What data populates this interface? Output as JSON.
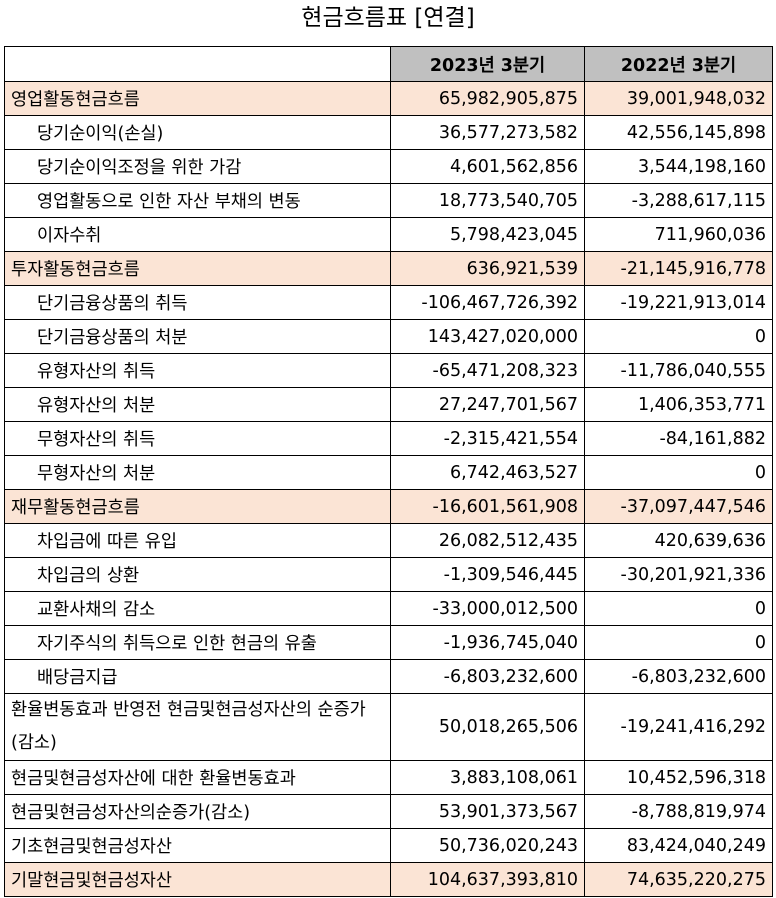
{
  "title": "현금흐름표 [연결]",
  "columns": [
    "",
    "2023년 3분기",
    "2022년 3분기"
  ],
  "rows": [
    {
      "label": "영업활동현금흐름",
      "v2023": "65,982,905,875",
      "v2022": "39,001,948,032",
      "section": true,
      "indent": false
    },
    {
      "label": "당기순이익(손실)",
      "v2023": "36,577,273,582",
      "v2022": "42,556,145,898",
      "section": false,
      "indent": true
    },
    {
      "label": "당기순이익조정을 위한 가감",
      "v2023": "4,601,562,856",
      "v2022": "3,544,198,160",
      "section": false,
      "indent": true
    },
    {
      "label": "영업활동으로 인한 자산 부채의 변동",
      "v2023": "18,773,540,705",
      "v2022": "-3,288,617,115",
      "section": false,
      "indent": true
    },
    {
      "label": "이자수취",
      "v2023": "5,798,423,045",
      "v2022": "711,960,036",
      "section": false,
      "indent": true
    },
    {
      "label": "투자활동현금흐름",
      "v2023": "636,921,539",
      "v2022": "-21,145,916,778",
      "section": true,
      "indent": false
    },
    {
      "label": "단기금융상품의 취득",
      "v2023": "-106,467,726,392",
      "v2022": "-19,221,913,014",
      "section": false,
      "indent": true
    },
    {
      "label": "단기금융상품의 처분",
      "v2023": "143,427,020,000",
      "v2022": "0",
      "section": false,
      "indent": true
    },
    {
      "label": "유형자산의 취득",
      "v2023": "-65,471,208,323",
      "v2022": "-11,786,040,555",
      "section": false,
      "indent": true
    },
    {
      "label": "유형자산의 처분",
      "v2023": "27,247,701,567",
      "v2022": "1,406,353,771",
      "section": false,
      "indent": true
    },
    {
      "label": "무형자산의 취득",
      "v2023": "-2,315,421,554",
      "v2022": "-84,161,882",
      "section": false,
      "indent": true
    },
    {
      "label": "무형자산의 처분",
      "v2023": "6,742,463,527",
      "v2022": "0",
      "section": false,
      "indent": true
    },
    {
      "label": "재무활동현금흐름",
      "v2023": "-16,601,561,908",
      "v2022": "-37,097,447,546",
      "section": true,
      "indent": false
    },
    {
      "label": "차입금에 따른 유입",
      "v2023": "26,082,512,435",
      "v2022": "420,639,636",
      "section": false,
      "indent": true
    },
    {
      "label": "차입금의 상환",
      "v2023": "-1,309,546,445",
      "v2022": "-30,201,921,336",
      "section": false,
      "indent": true
    },
    {
      "label": "교환사채의 감소",
      "v2023": "-33,000,012,500",
      "v2022": "0",
      "section": false,
      "indent": true
    },
    {
      "label": "자기주식의 취득으로 인한 현금의 유출",
      "v2023": "-1,936,745,040",
      "v2022": "0",
      "section": false,
      "indent": true
    },
    {
      "label": "배당금지급",
      "v2023": "-6,803,232,600",
      "v2022": "-6,803,232,600",
      "section": false,
      "indent": true
    },
    {
      "label": "환율변동효과 반영전 현금및현금성자산의 순증가(감소)",
      "v2023": "50,018,265,506",
      "v2022": "-19,241,416,292",
      "section": false,
      "indent": false,
      "tall": true
    },
    {
      "label": "현금및현금성자산에 대한 환율변동효과",
      "v2023": "3,883,108,061",
      "v2022": "10,452,596,318",
      "section": false,
      "indent": false
    },
    {
      "label": "현금및현금성자산의순증가(감소)",
      "v2023": "53,901,373,567",
      "v2022": "-8,788,819,974",
      "section": false,
      "indent": false
    },
    {
      "label": "기초현금및현금성자산",
      "v2023": "50,736,020,243",
      "v2022": "83,424,040,249",
      "section": false,
      "indent": false
    },
    {
      "label": "기말현금및현금성자산",
      "v2023": "104,637,393,810",
      "v2022": "74,635,220,275",
      "section": true,
      "indent": false
    }
  ]
}
